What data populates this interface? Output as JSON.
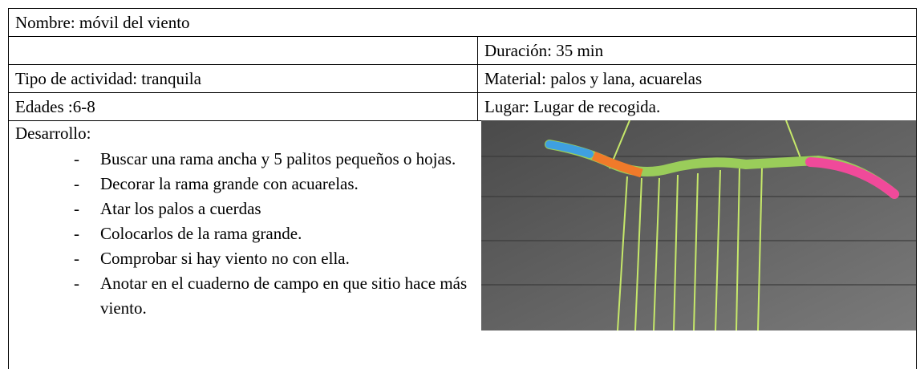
{
  "name": "Nombre: móvil del viento",
  "duration": "Duración: 35 min",
  "activity_type": "Tipo de actividad: tranquila",
  "material": "Material: palos y lana, acuarelas",
  "ages": "Edades :6-8",
  "place": "Lugar: Lugar de recogida.",
  "development": {
    "label": "Desarrollo:",
    "steps": [
      "Buscar una rama ancha y 5 palitos pequeños o hojas.",
      "Decorar la rama grande con acuarelas.",
      "Atar los palos a cuerdas",
      "Colocarlos de la rama grande.",
      "Comprobar si hay viento  no con ella.",
      "Anotar en el cuaderno de campo en que sitio hace más viento."
    ]
  }
}
